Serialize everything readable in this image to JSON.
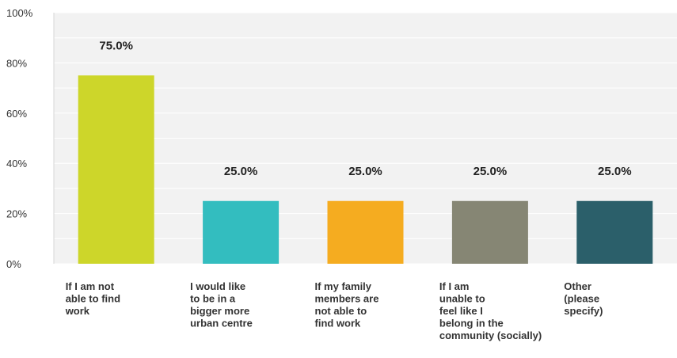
{
  "chart_data": {
    "type": "bar",
    "categories": [
      [
        "If I am not",
        "able to find",
        "work"
      ],
      [
        "I would like",
        "to be in a",
        "bigger more",
        "urban centre"
      ],
      [
        "If my family",
        "members are",
        "not able to",
        "find work"
      ],
      [
        "If I am",
        "unable to",
        "feel like I",
        "belong in the",
        "community (socially)"
      ],
      [
        "Other",
        "(please",
        "specify)"
      ]
    ],
    "values": [
      75.0,
      25.0,
      25.0,
      25.0,
      25.0
    ],
    "value_labels": [
      "75.0%",
      "25.0%",
      "25.0%",
      "25.0%",
      "25.0%"
    ],
    "colors": [
      "#cdd62a",
      "#33bdbf",
      "#f5ac20",
      "#868674",
      "#2b5f6a"
    ],
    "ylim": [
      0,
      100
    ],
    "yticks": [
      0,
      20,
      40,
      60,
      80,
      100
    ],
    "ytick_labels": [
      "0%",
      "20%",
      "40%",
      "60%",
      "80%",
      "100%"
    ],
    "grid": true,
    "plot_background": "#f2f2f2"
  }
}
